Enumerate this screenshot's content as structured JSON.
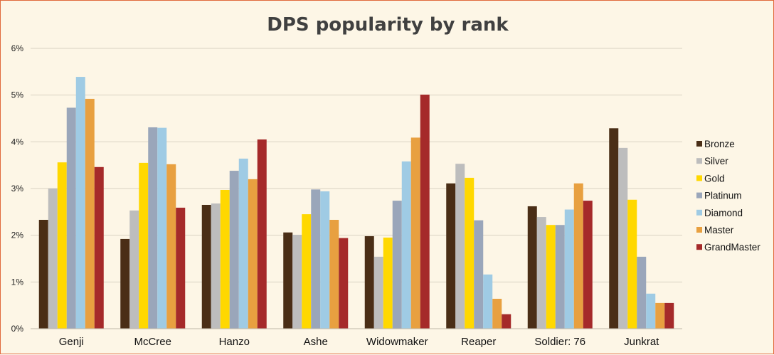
{
  "chart_data": {
    "type": "bar",
    "title": "DPS popularity by rank",
    "xlabel": "",
    "ylabel": "",
    "ylim": [
      0,
      6
    ],
    "yticks": [
      0,
      1,
      2,
      3,
      4,
      5,
      6
    ],
    "ytick_labels": [
      "0%",
      "1%",
      "2%",
      "3%",
      "4%",
      "5%",
      "6%"
    ],
    "grid": true,
    "legend_position": "right",
    "categories": [
      "Genji",
      "McCree",
      "Hanzo",
      "Ashe",
      "Widowmaker",
      "Reaper",
      "Soldier: 76",
      "Junkrat"
    ],
    "series": [
      {
        "name": "Bronze",
        "color": "#4a2e16",
        "values": [
          2.33,
          1.92,
          2.65,
          2.06,
          1.98,
          3.11,
          2.62,
          4.29
        ]
      },
      {
        "name": "Silver",
        "color": "#bdbdbd",
        "values": [
          3.0,
          2.53,
          2.68,
          2.01,
          1.54,
          3.53,
          2.39,
          3.87
        ]
      },
      {
        "name": "Gold",
        "color": "#ffd800",
        "values": [
          3.56,
          3.55,
          2.97,
          2.45,
          1.95,
          3.23,
          2.22,
          2.76
        ]
      },
      {
        "name": "Platinum",
        "color": "#9aa6ba",
        "values": [
          4.73,
          4.31,
          3.38,
          2.98,
          2.74,
          2.32,
          2.22,
          1.54
        ]
      },
      {
        "name": "Diamond",
        "color": "#9fcbe4",
        "values": [
          5.39,
          4.3,
          3.64,
          2.94,
          3.58,
          1.16,
          2.55,
          0.75
        ]
      },
      {
        "name": "Master",
        "color": "#e8a040",
        "values": [
          4.92,
          3.52,
          3.2,
          2.33,
          4.09,
          0.64,
          3.11,
          0.55
        ]
      },
      {
        "name": "GrandMaster",
        "color": "#a52a2a",
        "values": [
          3.46,
          2.59,
          4.05,
          1.94,
          5.01,
          0.31,
          2.74,
          0.55
        ]
      }
    ]
  }
}
